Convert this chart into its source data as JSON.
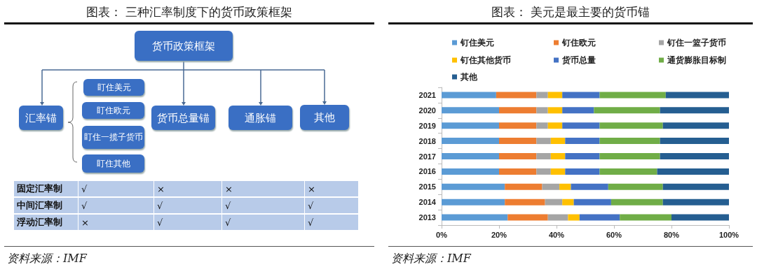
{
  "chart_data": [
    {
      "type": "other",
      "title": "图表： 三种汇率制度下的货币政策框架",
      "annotations": [
        "货币政策框架",
        "汇率锚",
        "货币总量锚",
        "通胀锚",
        "其他",
        "盯住美元",
        "盯住欧元",
        "盯住一揽子货币",
        "盯住其他",
        "固定汇率制",
        "√",
        "×",
        "×",
        "×",
        "中间汇率制",
        "√",
        "√",
        "√",
        "√",
        "浮动汇率制",
        "×",
        "√",
        "√",
        "√",
        "资料来源：IMF"
      ]
    },
    {
      "type": "bar",
      "title": "图表： 美元是最主要的货币锚",
      "orientation": "horizontal",
      "stacked": true,
      "legend": "top",
      "categories": [
        "2021",
        "2020",
        "2019",
        "2018",
        "2017",
        "2016",
        "2015",
        "2014",
        "2013"
      ],
      "xlim": [
        0,
        100
      ],
      "xticks": [
        {
          "value": 0,
          "label": "0%"
        },
        {
          "value": 20,
          "label": "20%"
        },
        {
          "value": 40,
          "label": "40%"
        },
        {
          "value": 60,
          "label": "60%"
        },
        {
          "value": 80,
          "label": "80%"
        },
        {
          "value": 100,
          "label": "100%"
        }
      ],
      "series": [
        {
          "name": "钉住美元",
          "color": "#5b9bd5",
          "values": [
            19,
            20,
            20,
            20,
            20,
            20,
            22,
            22,
            23
          ]
        },
        {
          "name": "钉住欧元",
          "color": "#ed7d31",
          "values": [
            14,
            13,
            13,
            13,
            13,
            13,
            13,
            14,
            14
          ]
        },
        {
          "name": "钉住一篮子货币",
          "color": "#a5a5a5",
          "values": [
            4,
            4,
            4,
            5,
            5,
            5,
            6,
            6,
            7
          ]
        },
        {
          "name": "钉住其他货币",
          "color": "#ffc000",
          "values": [
            5,
            5,
            5,
            5,
            5,
            5,
            4,
            4,
            4
          ]
        },
        {
          "name": "货币总量",
          "color": "#4472c4",
          "values": [
            13,
            11,
            13,
            12,
            12,
            12,
            13,
            13,
            14
          ]
        },
        {
          "name": "通货膨胀目标制",
          "color": "#70ad47",
          "values": [
            23,
            23,
            22,
            21,
            21,
            20,
            19,
            18,
            18
          ]
        },
        {
          "name": "其他",
          "color": "#255e91",
          "values": [
            22,
            24,
            23,
            24,
            24,
            25,
            23,
            23,
            20
          ]
        }
      ],
      "annotations": [
        "资料来源：IMF"
      ]
    }
  ]
}
